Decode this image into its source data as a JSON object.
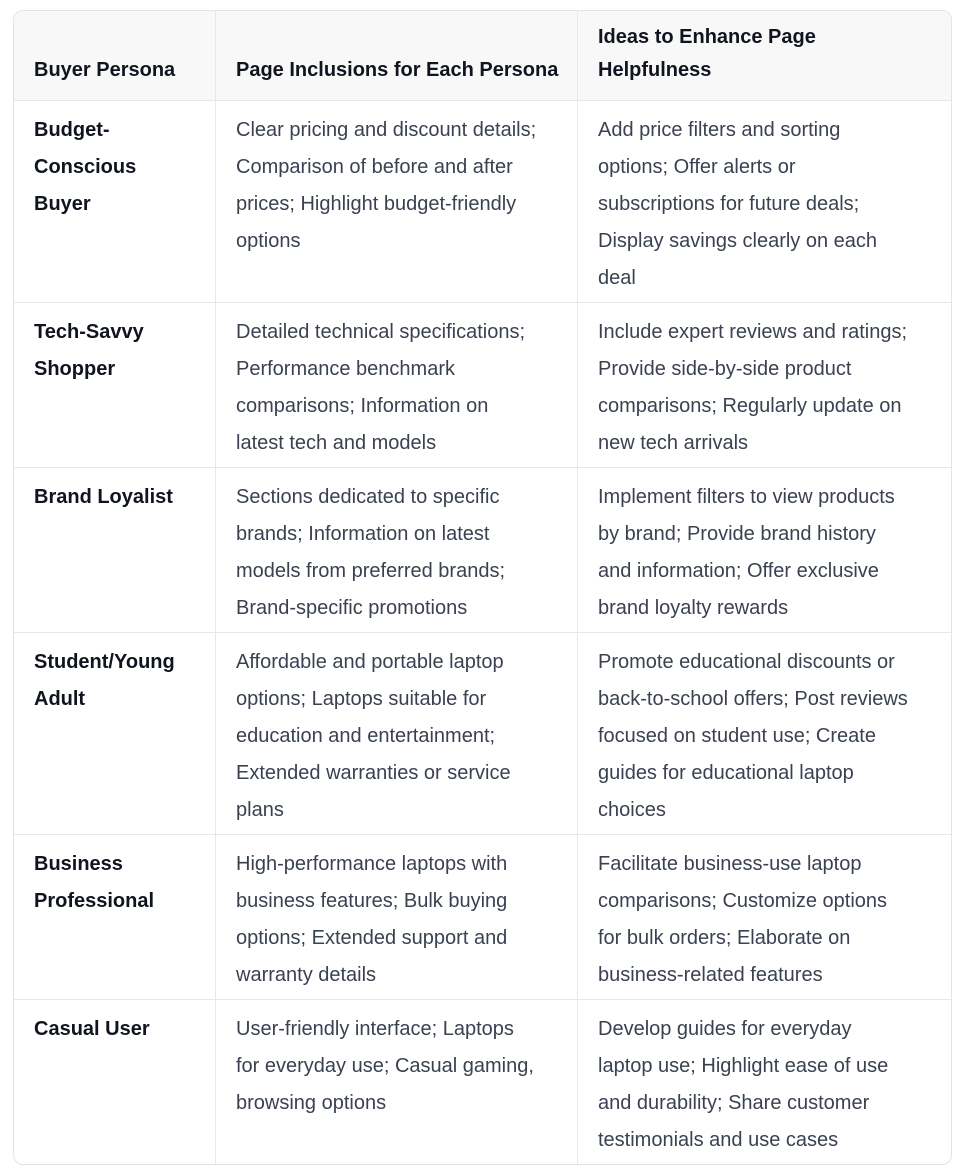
{
  "colors": {
    "header_background": "#f8f8f9",
    "grid_border": "#e8e8ea",
    "outer_border": "#e4e4e6",
    "heading_text": "#10141f",
    "body_text": "#3a4150",
    "cell_background": "#ffffff"
  },
  "table": {
    "headers": {
      "persona": "Buyer Persona",
      "inclusions": "Page Inclusions for Each Persona",
      "ideas": "Ideas to Enhance Page\nHelpfulness"
    },
    "rows": [
      {
        "persona": "Budget-\nConscious Buyer",
        "inclusions": "Clear pricing and discount details;\nComparison of before and after\nprices; Highlight budget-friendly\noptions",
        "ideas": "Add price filters and sorting\noptions; Offer alerts or\nsubscriptions for future deals;\nDisplay savings clearly on each\ndeal"
      },
      {
        "persona": "Tech-Savvy\nShopper",
        "inclusions": "Detailed technical specifications;\nPerformance benchmark\ncomparisons; Information on\nlatest tech and models",
        "ideas": "Include expert reviews and ratings;\nProvide side-by-side product\ncomparisons; Regularly update on\nnew tech arrivals"
      },
      {
        "persona": "Brand Loyalist",
        "inclusions": "Sections dedicated to specific\nbrands; Information on latest\nmodels from preferred brands;\nBrand-specific promotions",
        "ideas": "Implement filters to view products\nby brand; Provide brand history\nand information; Offer exclusive\nbrand loyalty rewards"
      },
      {
        "persona": "Student/Young\nAdult",
        "inclusions": "Affordable and portable laptop\noptions; Laptops suitable for\neducation and entertainment;\nExtended warranties or service\nplans",
        "ideas": "Promote educational discounts or\nback-to-school offers; Post reviews\nfocused on student use; Create\nguides for educational laptop\nchoices"
      },
      {
        "persona": "Business\nProfessional",
        "inclusions": "High-performance laptops with\nbusiness features; Bulk buying\noptions; Extended support and\nwarranty details",
        "ideas": "Facilitate business-use laptop\ncomparisons; Customize options\nfor bulk orders; Elaborate on\nbusiness-related features"
      },
      {
        "persona": "Casual User",
        "inclusions": "User-friendly interface; Laptops\nfor everyday use; Casual gaming,\nbrowsing options",
        "ideas": "Develop guides for everyday\nlaptop use; Highlight ease of use\nand durability; Share customer\ntestimonials and use cases"
      }
    ]
  }
}
